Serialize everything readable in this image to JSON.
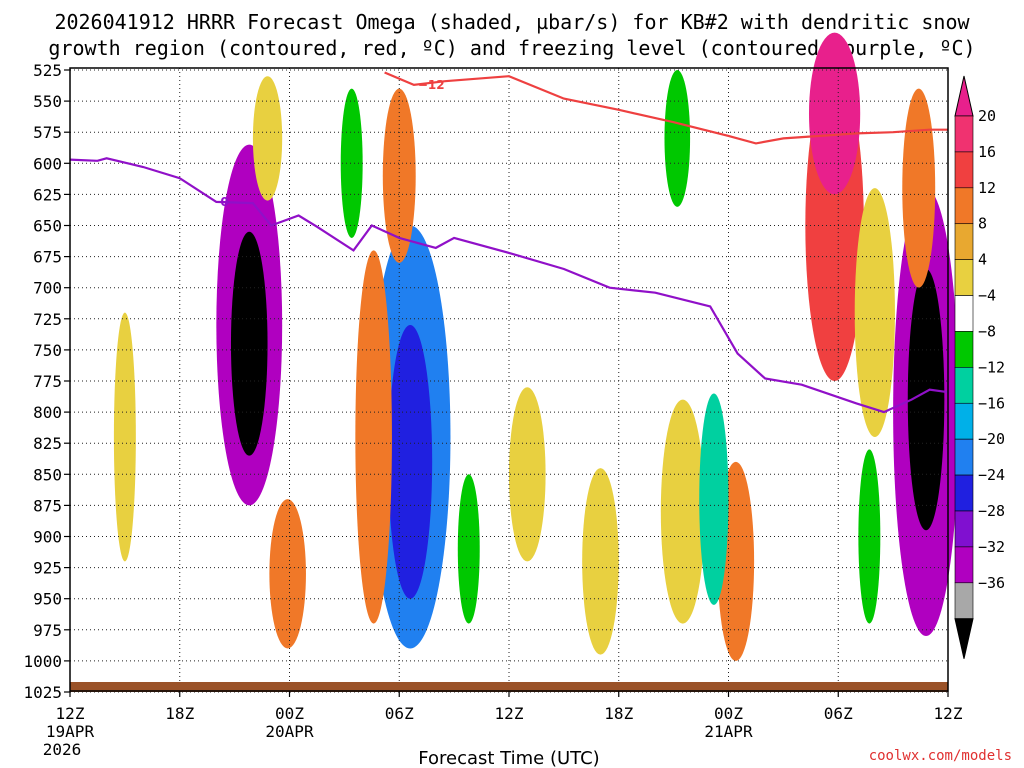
{
  "chart_data": {
    "type": "heatmap",
    "title_line1": "2026041912 HRRR Forecast Omega (shaded, µbar/s) for KB#2 with dendritic snow",
    "title_line2": "growth region (contoured, red, ºC) and freezing level (contoured, purple, ºC)",
    "xlabel": "Forecast Time (UTC)",
    "credit": "coolwx.com/models",
    "x_range_hours": [
      0,
      48
    ],
    "y_range_hPa": [
      525,
      1025
    ],
    "y_ticks": [
      "525",
      "550",
      "575",
      "600",
      "625",
      "650",
      "675",
      "700",
      "725",
      "750",
      "775",
      "800",
      "825",
      "850",
      "875",
      "900",
      "925",
      "950",
      "975",
      "1000",
      "1025"
    ],
    "x_ticks": [
      {
        "h": 0,
        "label": "12Z",
        "sub": "19APR",
        "sub2": "2026"
      },
      {
        "h": 6,
        "label": "18Z",
        "sub": "",
        "sub2": ""
      },
      {
        "h": 12,
        "label": "00Z",
        "sub": "20APR",
        "sub2": ""
      },
      {
        "h": 18,
        "label": "06Z",
        "sub": "",
        "sub2": ""
      },
      {
        "h": 24,
        "label": "12Z",
        "sub": "",
        "sub2": ""
      },
      {
        "h": 30,
        "label": "18Z",
        "sub": "",
        "sub2": ""
      },
      {
        "h": 36,
        "label": "00Z",
        "sub": "21APR",
        "sub2": ""
      },
      {
        "h": 42,
        "label": "06Z",
        "sub": "",
        "sub2": ""
      },
      {
        "h": 48,
        "label": "12Z",
        "sub": "",
        "sub2": ""
      }
    ],
    "colorbar": [
      {
        "label": "20",
        "color": "#f03270"
      },
      {
        "label": "16",
        "color": "#f04040"
      },
      {
        "label": "12",
        "color": "#f07828"
      },
      {
        "label": "8",
        "color": "#e8a830"
      },
      {
        "label": "4",
        "color": "#e8d040"
      },
      {
        "label": "−4",
        "color": "#ffffff"
      },
      {
        "label": "−8",
        "color": "#00c800"
      },
      {
        "label": "−12",
        "color": "#00d0a0"
      },
      {
        "label": "−16",
        "color": "#00b0e8"
      },
      {
        "label": "−20",
        "color": "#2080f0"
      },
      {
        "label": "−24",
        "color": "#2020e0"
      },
      {
        "label": "−28",
        "color": "#8010d0"
      },
      {
        "label": "−32",
        "color": "#b000c0"
      },
      {
        "label": "−36",
        "color": "#a8a8a8"
      }
    ],
    "colorbar_top_color": "#e8208c",
    "colorbar_bottom_color": "#000000",
    "cells": [
      {
        "t": 9.8,
        "p": 730,
        "w": 1.8,
        "h": 290,
        "v": -34
      },
      {
        "t": 9.8,
        "p": 745,
        "w": 1.0,
        "h": 180,
        "v": -38
      },
      {
        "t": 18.6,
        "p": 820,
        "w": 2.2,
        "h": 340,
        "v": -22
      },
      {
        "t": 18.6,
        "p": 840,
        "w": 1.2,
        "h": 220,
        "v": -27
      },
      {
        "t": 46.8,
        "p": 800,
        "w": 1.8,
        "h": 360,
        "v": -32
      },
      {
        "t": 46.8,
        "p": 790,
        "w": 1.0,
        "h": 210,
        "v": -38
      },
      {
        "t": 41.8,
        "p": 650,
        "w": 1.6,
        "h": 250,
        "v": 18
      },
      {
        "t": 41.8,
        "p": 560,
        "w": 1.4,
        "h": 130,
        "v": 22
      },
      {
        "t": 18.0,
        "p": 610,
        "w": 0.9,
        "h": 140,
        "v": 14
      },
      {
        "t": 16.6,
        "p": 820,
        "w": 1.0,
        "h": 300,
        "v": 14
      },
      {
        "t": 11.9,
        "p": 930,
        "w": 1.0,
        "h": 120,
        "v": 15
      },
      {
        "t": 46.4,
        "p": 620,
        "w": 0.9,
        "h": 160,
        "v": 14
      },
      {
        "t": 36.4,
        "p": 920,
        "w": 1.0,
        "h": 160,
        "v": 13
      },
      {
        "t": 10.8,
        "p": 580,
        "w": 0.8,
        "h": 100,
        "v": 5
      },
      {
        "t": 3.0,
        "p": 820,
        "w": 0.6,
        "h": 200,
        "v": 5
      },
      {
        "t": 29.0,
        "p": 920,
        "w": 1.0,
        "h": 150,
        "v": 6
      },
      {
        "t": 33.5,
        "p": 880,
        "w": 1.2,
        "h": 180,
        "v": 6
      },
      {
        "t": 25.0,
        "p": 850,
        "w": 1.0,
        "h": 140,
        "v": 5
      },
      {
        "t": 21.8,
        "p": 910,
        "w": 0.6,
        "h": 120,
        "v": -9
      },
      {
        "t": 35.2,
        "p": 870,
        "w": 0.8,
        "h": 170,
        "v": -12
      },
      {
        "t": 43.7,
        "p": 900,
        "w": 0.6,
        "h": 140,
        "v": -8
      },
      {
        "t": 33.2,
        "p": 580,
        "w": 0.7,
        "h": 110,
        "v": -9
      },
      {
        "t": 15.4,
        "p": 600,
        "w": 0.6,
        "h": 120,
        "v": -9
      },
      {
        "t": 44.0,
        "p": 720,
        "w": 1.1,
        "h": 200,
        "v": 6
      }
    ],
    "dgz_line": {
      "label": "−12",
      "color": "#ee4040",
      "points": [
        [
          17.2,
          527
        ],
        [
          18.8,
          537
        ],
        [
          20.5,
          534
        ],
        [
          24,
          530
        ],
        [
          27,
          548
        ],
        [
          30,
          557
        ],
        [
          33,
          567
        ],
        [
          36,
          578
        ],
        [
          37.5,
          584
        ],
        [
          39,
          580
        ],
        [
          41,
          578
        ],
        [
          43,
          576
        ],
        [
          45,
          575
        ],
        [
          47,
          573
        ],
        [
          48,
          573
        ]
      ]
    },
    "freezing_line": {
      "label": "0",
      "color": "#9010c8",
      "points": [
        [
          0,
          597
        ],
        [
          1.5,
          598
        ],
        [
          2.0,
          596
        ],
        [
          4,
          603
        ],
        [
          6,
          612
        ],
        [
          8,
          631
        ],
        [
          10,
          632
        ],
        [
          11,
          650
        ],
        [
          12.5,
          642
        ],
        [
          13.5,
          651
        ],
        [
          15.5,
          670
        ],
        [
          16.5,
          650
        ],
        [
          18,
          660
        ],
        [
          20,
          668
        ],
        [
          21,
          660
        ],
        [
          24,
          672
        ],
        [
          27,
          685
        ],
        [
          29.5,
          700
        ],
        [
          32,
          704
        ],
        [
          35,
          715
        ],
        [
          36.5,
          753
        ],
        [
          38,
          773
        ],
        [
          40,
          778
        ],
        [
          43,
          793
        ],
        [
          44.5,
          800
        ],
        [
          46,
          790
        ],
        [
          47,
          782
        ],
        [
          48,
          784
        ]
      ]
    }
  }
}
